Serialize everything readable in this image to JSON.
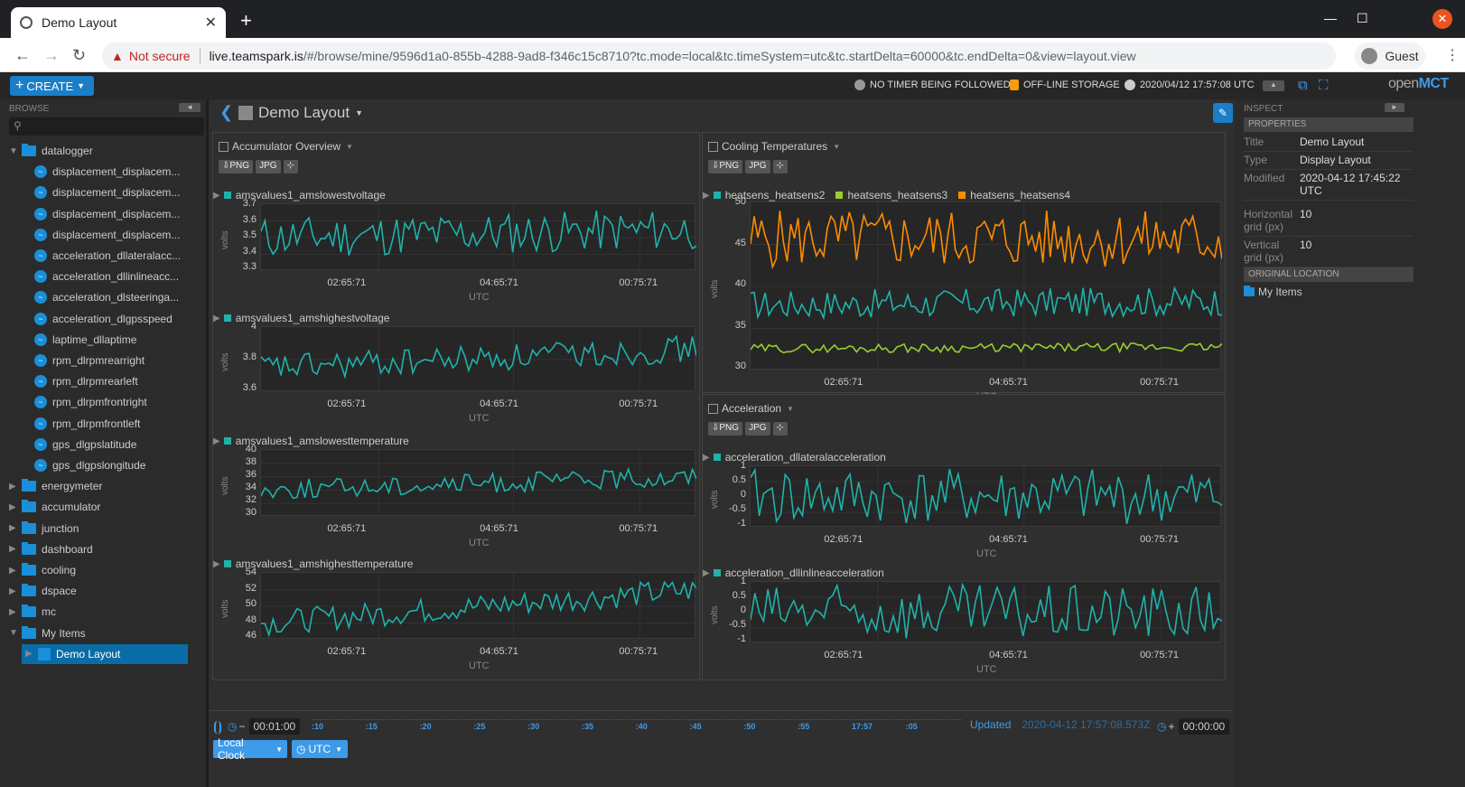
{
  "browser": {
    "tab_title": "Demo Layout",
    "url_warning": "Not secure",
    "url_host": "live.teamspark.is",
    "url_path": "/#/browse/mine/9596d1a0-855b-4288-9ad8-f346c15c8710?tc.mode=local&tc.timeSystem=utc&tc.startDelta=60000&tc.endDelta=0&view=layout.view",
    "profile": "Guest"
  },
  "toolbar": {
    "create_label": "CREATE",
    "timer_status": "NO TIMER BEING FOLLOWED",
    "storage_status": "OFF-LINE STORAGE",
    "clock": "2020/04/12 17:57:08 UTC",
    "logo_prefix": "open",
    "logo_suffix": "MCT"
  },
  "browse": {
    "label": "BROWSE",
    "tree": [
      {
        "label": "datalogger",
        "kind": "folder",
        "expanded": true,
        "depth": 0
      },
      {
        "label": "displacement_displacem...",
        "kind": "telemetry",
        "depth": 1
      },
      {
        "label": "displacement_displacem...",
        "kind": "telemetry",
        "depth": 1
      },
      {
        "label": "displacement_displacem...",
        "kind": "telemetry",
        "depth": 1
      },
      {
        "label": "displacement_displacem...",
        "kind": "telemetry",
        "depth": 1
      },
      {
        "label": "acceleration_dllateralacc...",
        "kind": "telemetry",
        "depth": 1
      },
      {
        "label": "acceleration_dllinlineacc...",
        "kind": "telemetry",
        "depth": 1
      },
      {
        "label": "acceleration_dlsteeringa...",
        "kind": "telemetry",
        "depth": 1
      },
      {
        "label": "acceleration_dlgpsspeed",
        "kind": "telemetry",
        "depth": 1
      },
      {
        "label": "laptime_dllaptime",
        "kind": "telemetry",
        "depth": 1
      },
      {
        "label": "rpm_dlrpmrearright",
        "kind": "telemetry",
        "depth": 1
      },
      {
        "label": "rpm_dlrpmrearleft",
        "kind": "telemetry",
        "depth": 1
      },
      {
        "label": "rpm_dlrpmfrontright",
        "kind": "telemetry",
        "depth": 1
      },
      {
        "label": "rpm_dlrpmfrontleft",
        "kind": "telemetry",
        "depth": 1
      },
      {
        "label": "gps_dlgpslatitude",
        "kind": "telemetry",
        "depth": 1
      },
      {
        "label": "gps_dlgpslongitude",
        "kind": "telemetry",
        "depth": 1
      },
      {
        "label": "energymeter",
        "kind": "folder",
        "depth": 0
      },
      {
        "label": "accumulator",
        "kind": "folder",
        "depth": 0
      },
      {
        "label": "junction",
        "kind": "folder",
        "depth": 0
      },
      {
        "label": "dashboard",
        "kind": "folder",
        "depth": 0
      },
      {
        "label": "cooling",
        "kind": "folder",
        "depth": 0
      },
      {
        "label": "dspace",
        "kind": "folder",
        "depth": 0
      },
      {
        "label": "mc",
        "kind": "folder",
        "depth": 0
      },
      {
        "label": "My Items",
        "kind": "folder",
        "expanded": true,
        "depth": 0
      },
      {
        "label": "Demo Layout",
        "kind": "layout",
        "depth": 1,
        "selected": true
      }
    ]
  },
  "main": {
    "layout_title": "Demo Layout",
    "png": "PNG",
    "jpg": "JPG",
    "x_ticks": [
      "02:65:71",
      "04:65:71",
      "00:75:71"
    ],
    "x_unit": "UTC",
    "y_label": "volts",
    "frames": [
      {
        "title": "Accumulator Overview",
        "plots": [
          {
            "name": "amsvalues1_amslowestvoltage",
            "color": "#20b2aa",
            "yticks": [
              "3.7",
              "3.6",
              "3.5",
              "3.4",
              "3.3"
            ]
          },
          {
            "name": "amsvalues1_amshighestvoltage",
            "color": "#20b2aa",
            "yticks": [
              "4",
              "3.8",
              "3.6"
            ]
          },
          {
            "name": "amsvalues1_amslowesttemperature",
            "color": "#20b2aa",
            "yticks": [
              "40",
              "38",
              "36",
              "34",
              "32",
              "30"
            ]
          },
          {
            "name": "amsvalues1_amshighesttemperature",
            "color": "#20b2aa",
            "yticks": [
              "54",
              "52",
              "50",
              "48",
              "46"
            ]
          }
        ]
      },
      {
        "title": "Cooling Temperatures",
        "legend": [
          {
            "name": "heatsens_heatsens2",
            "color": "#20b2aa"
          },
          {
            "name": "heatsens_heatsens3",
            "color": "#9acd32"
          },
          {
            "name": "heatsens_heatsens4",
            "color": "#ff8c00"
          }
        ],
        "yticks": [
          "50",
          "45",
          "40",
          "35",
          "30"
        ]
      },
      {
        "title": "Acceleration",
        "plots": [
          {
            "name": "acceleration_dllateralacceleration",
            "color": "#20b2aa",
            "yticks": [
              "1",
              "0.5",
              "0",
              "-0.5",
              "-1"
            ]
          },
          {
            "name": "acceleration_dllinlineacceleration",
            "color": "#20b2aa",
            "yticks": [
              "1",
              "0.5",
              "0",
              "-0.5",
              "-1"
            ]
          }
        ]
      }
    ]
  },
  "inspect": {
    "label": "INSPECT",
    "properties_header": "PROPERTIES",
    "props": [
      {
        "k": "Title",
        "v": "Demo Layout"
      },
      {
        "k": "Type",
        "v": "Display Layout"
      },
      {
        "k": "Modified",
        "v": "2020-04-12 17:45:22 UTC"
      },
      {
        "k": "Horizontal grid (px)",
        "v": "10"
      },
      {
        "k": "Vertical grid (px)",
        "v": "10"
      }
    ],
    "location_header": "ORIGINAL LOCATION",
    "location": "My Items"
  },
  "timebar": {
    "start_offset": "00:01:00",
    "ticks": [
      ":10",
      ":15",
      ":20",
      ":25",
      ":30",
      ":35",
      ":40",
      ":45",
      ":50",
      ":55",
      "17:57",
      ":05"
    ],
    "updated_label": "Updated",
    "updated_time": "2020-04-12 17:57:08.573Z",
    "end_offset": "00:00:00",
    "clock_menu": "Local Clock",
    "timesystem_menu": "UTC"
  }
}
